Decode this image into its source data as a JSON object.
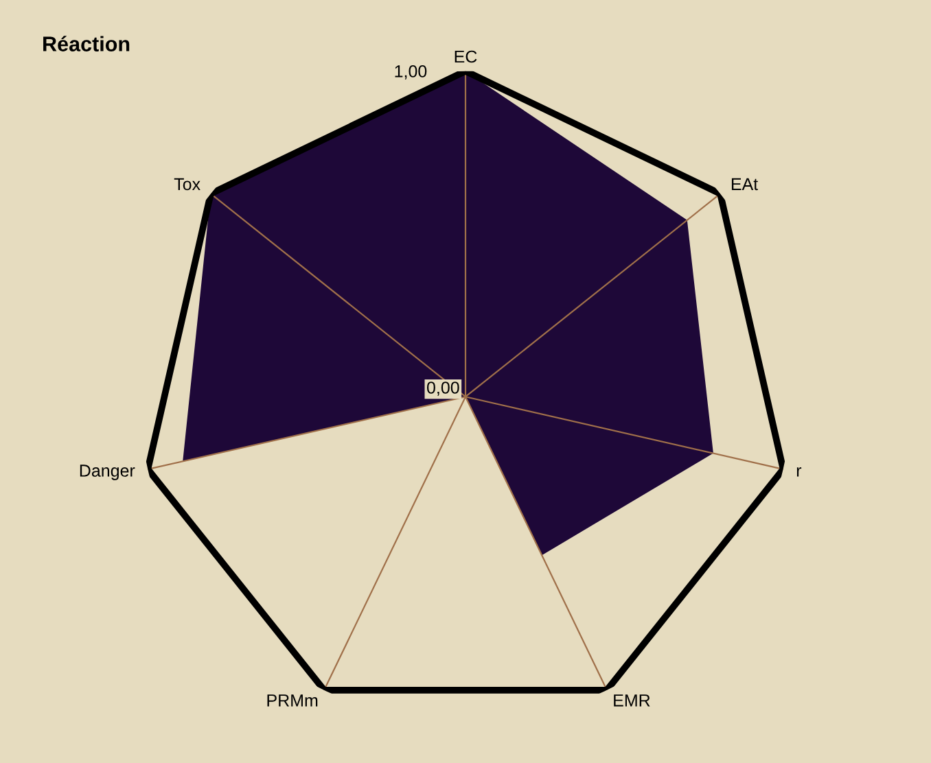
{
  "chart_data": {
    "type": "radar",
    "title": "Réaction",
    "categories": [
      "EC",
      "EAt",
      "r",
      "EMR",
      "PRMm",
      "Danger",
      "Tox"
    ],
    "series": [
      {
        "color": "#1e0838",
        "values": [
          1.0,
          0.87,
          0.78,
          0.54,
          0,
          0.89,
          1.0
        ]
      }
    ],
    "ylim": [
      0,
      1
    ],
    "yticks": [
      {
        "value": 0,
        "label": "0,00"
      },
      {
        "value": 1,
        "label": "1,00"
      }
    ],
    "grid": false,
    "legend": false
  }
}
